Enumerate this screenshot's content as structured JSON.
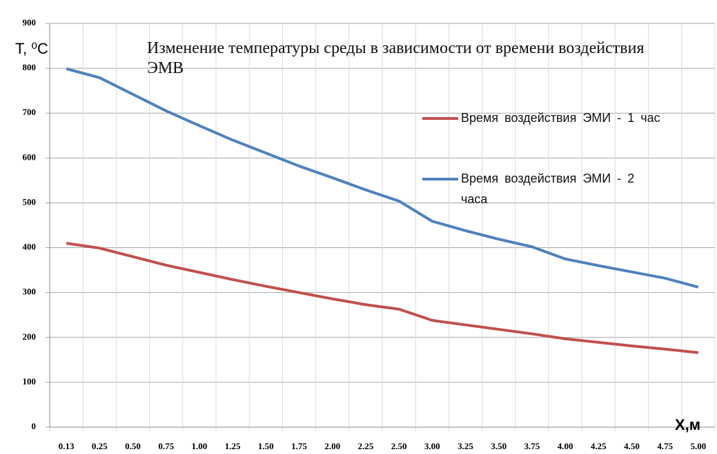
{
  "chart_data": {
    "type": "line",
    "title": "Изменение температуры среды в зависимости от времени воздействия ЭМВ",
    "y_label": "T, ⁰C",
    "x_label": "X,м",
    "categories": [
      "0.13",
      "0.25",
      "0.50",
      "0.75",
      "1.00",
      "1.25",
      "1.50",
      "1.75",
      "2.00",
      "2.25",
      "2.50",
      "3.00",
      "3.25",
      "3.50",
      "3.75",
      "4.00",
      "4.25",
      "4.50",
      "4.75",
      "5.00"
    ],
    "series": [
      {
        "name": "Время воздействия ЭМИ - 1 час",
        "color": "#c0504d",
        "values": [
          410,
          399,
          380,
          361,
          345,
          329,
          314,
          300,
          286,
          273,
          263,
          238,
          228,
          218,
          208,
          197,
          189,
          181,
          174,
          166
        ]
      },
      {
        "name": "Время воздействия ЭМИ - 2 часа",
        "color": "#4f81bd",
        "values": [
          799,
          779,
          742,
          705,
          672,
          640,
          611,
          582,
          556,
          529,
          504,
          459,
          438,
          419,
          402,
          375,
          360,
          346,
          332,
          312
        ]
      }
    ],
    "ylim": [
      0,
      900
    ],
    "yticks": [
      0,
      100,
      200,
      300,
      400,
      500,
      600,
      700,
      800,
      900
    ],
    "grid": true
  }
}
